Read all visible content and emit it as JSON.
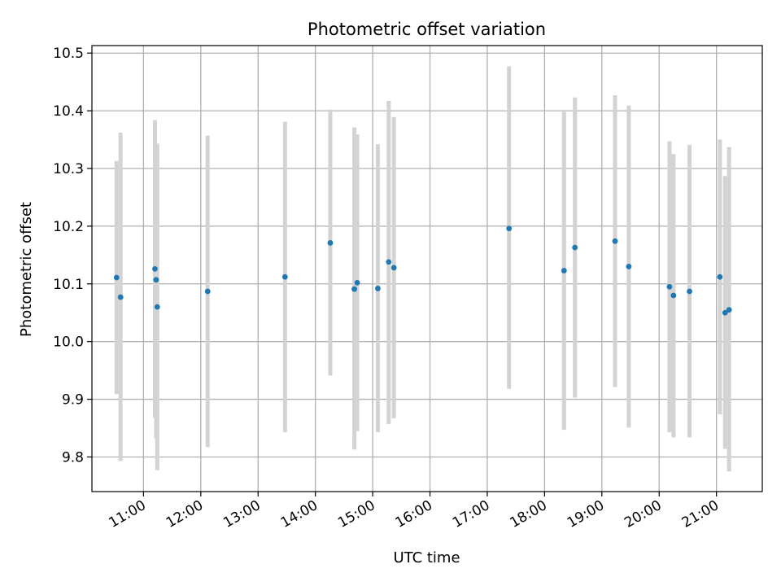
{
  "chart_data": {
    "type": "scatter",
    "title": "Photometric offset variation",
    "xlabel": "UTC time",
    "ylabel": "Photometric offset",
    "x_unit": "hours UTC",
    "xlim": [
      10.1,
      21.8
    ],
    "ylim": [
      9.74,
      10.513
    ],
    "grid": true,
    "x_ticks": [
      {
        "value": 11,
        "label": "11:00"
      },
      {
        "value": 12,
        "label": "12:00"
      },
      {
        "value": 13,
        "label": "13:00"
      },
      {
        "value": 14,
        "label": "14:00"
      },
      {
        "value": 15,
        "label": "15:00"
      },
      {
        "value": 16,
        "label": "16:00"
      },
      {
        "value": 17,
        "label": "17:00"
      },
      {
        "value": 18,
        "label": "18:00"
      },
      {
        "value": 19,
        "label": "19:00"
      },
      {
        "value": 20,
        "label": "20:00"
      },
      {
        "value": 21,
        "label": "21:00"
      }
    ],
    "y_ticks": [
      {
        "value": 9.8,
        "label": "9.8"
      },
      {
        "value": 9.9,
        "label": "9.9"
      },
      {
        "value": 10.0,
        "label": "10.0"
      },
      {
        "value": 10.1,
        "label": "10.1"
      },
      {
        "value": 10.2,
        "label": "10.2"
      },
      {
        "value": 10.3,
        "label": "10.3"
      },
      {
        "value": 10.4,
        "label": "10.4"
      },
      {
        "value": 10.5,
        "label": "10.5"
      }
    ],
    "colors": {
      "point": "#1f77b4",
      "errorbar": "#d3d3d3",
      "grid": "#b0b0b0"
    },
    "points": [
      {
        "x": 10.53,
        "y": 10.111,
        "ylow": 9.909,
        "yhigh": 10.313
      },
      {
        "x": 10.6,
        "y": 10.077,
        "ylow": 9.793,
        "yhigh": 10.362
      },
      {
        "x": 11.2,
        "y": 10.126,
        "ylow": 9.868,
        "yhigh": 10.384
      },
      {
        "x": 11.22,
        "y": 10.107,
        "ylow": 9.832,
        "yhigh": 10.343
      },
      {
        "x": 11.24,
        "y": 10.06,
        "ylow": 9.777,
        "yhigh": 10.343
      },
      {
        "x": 12.12,
        "y": 10.087,
        "ylow": 9.817,
        "yhigh": 10.357
      },
      {
        "x": 13.47,
        "y": 10.112,
        "ylow": 9.843,
        "yhigh": 10.381
      },
      {
        "x": 14.26,
        "y": 10.171,
        "ylow": 9.941,
        "yhigh": 10.402
      },
      {
        "x": 14.68,
        "y": 10.091,
        "ylow": 9.813,
        "yhigh": 10.371
      },
      {
        "x": 14.73,
        "y": 10.102,
        "ylow": 9.845,
        "yhigh": 10.359
      },
      {
        "x": 15.09,
        "y": 10.092,
        "ylow": 9.843,
        "yhigh": 10.342
      },
      {
        "x": 15.28,
        "y": 10.138,
        "ylow": 9.857,
        "yhigh": 10.417
      },
      {
        "x": 15.37,
        "y": 10.128,
        "ylow": 9.867,
        "yhigh": 10.389
      },
      {
        "x": 17.38,
        "y": 10.196,
        "ylow": 9.918,
        "yhigh": 10.477
      },
      {
        "x": 18.34,
        "y": 10.123,
        "ylow": 9.847,
        "yhigh": 10.398
      },
      {
        "x": 18.53,
        "y": 10.163,
        "ylow": 9.903,
        "yhigh": 10.423
      },
      {
        "x": 19.23,
        "y": 10.174,
        "ylow": 9.921,
        "yhigh": 10.427
      },
      {
        "x": 19.47,
        "y": 10.13,
        "ylow": 9.851,
        "yhigh": 10.409
      },
      {
        "x": 20.18,
        "y": 10.095,
        "ylow": 9.843,
        "yhigh": 10.347
      },
      {
        "x": 20.25,
        "y": 10.08,
        "ylow": 9.834,
        "yhigh": 10.325
      },
      {
        "x": 20.53,
        "y": 10.087,
        "ylow": 9.834,
        "yhigh": 10.341
      },
      {
        "x": 21.06,
        "y": 10.112,
        "ylow": 9.874,
        "yhigh": 10.35
      },
      {
        "x": 21.15,
        "y": 10.05,
        "ylow": 9.814,
        "yhigh": 10.287
      },
      {
        "x": 21.22,
        "y": 10.055,
        "ylow": 9.775,
        "yhigh": 10.337
      }
    ]
  }
}
